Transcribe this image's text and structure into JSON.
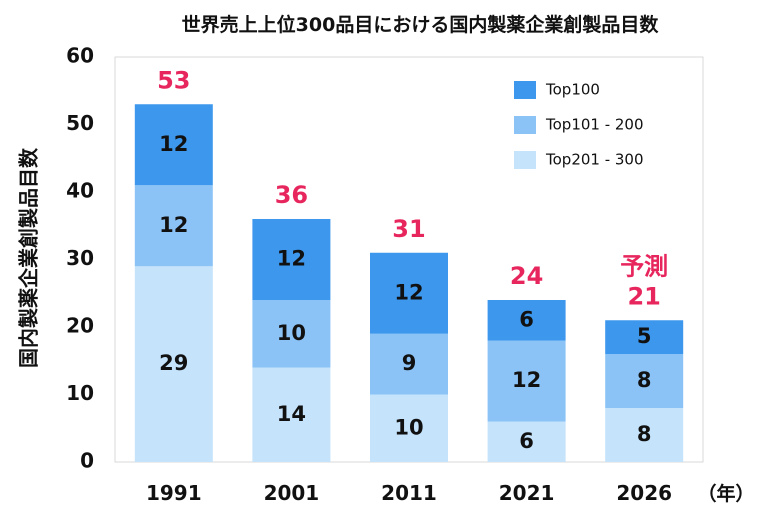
{
  "chart_data": {
    "type": "bar",
    "stacked": true,
    "title": "世界売上上位300品目における国内製薬企業創製品目数",
    "ylabel": "国内製薬企業創製品目数",
    "xlabel_unit": "（年）",
    "categories": [
      "1991",
      "2001",
      "2011",
      "2021",
      "2026"
    ],
    "ylim": [
      0,
      60
    ],
    "yticks": [
      0,
      10,
      20,
      30,
      40,
      50,
      60
    ],
    "grid": false,
    "legend_position": "top-right",
    "series": [
      {
        "name": "Top201 - 300",
        "values": [
          29,
          14,
          10,
          6,
          8
        ],
        "color": "#c5e3fb"
      },
      {
        "name": "Top101 - 200",
        "values": [
          12,
          10,
          9,
          12,
          8
        ],
        "color": "#8cc3f7"
      },
      {
        "name": "Top100",
        "values": [
          12,
          12,
          12,
          6,
          5
        ],
        "color": "#3d97ed"
      }
    ],
    "totals": [
      "53",
      "36",
      "31",
      "24",
      "21"
    ],
    "annotations": [
      {
        "category": "2026",
        "text": "予測"
      }
    ],
    "total_color": "#e8265e"
  }
}
